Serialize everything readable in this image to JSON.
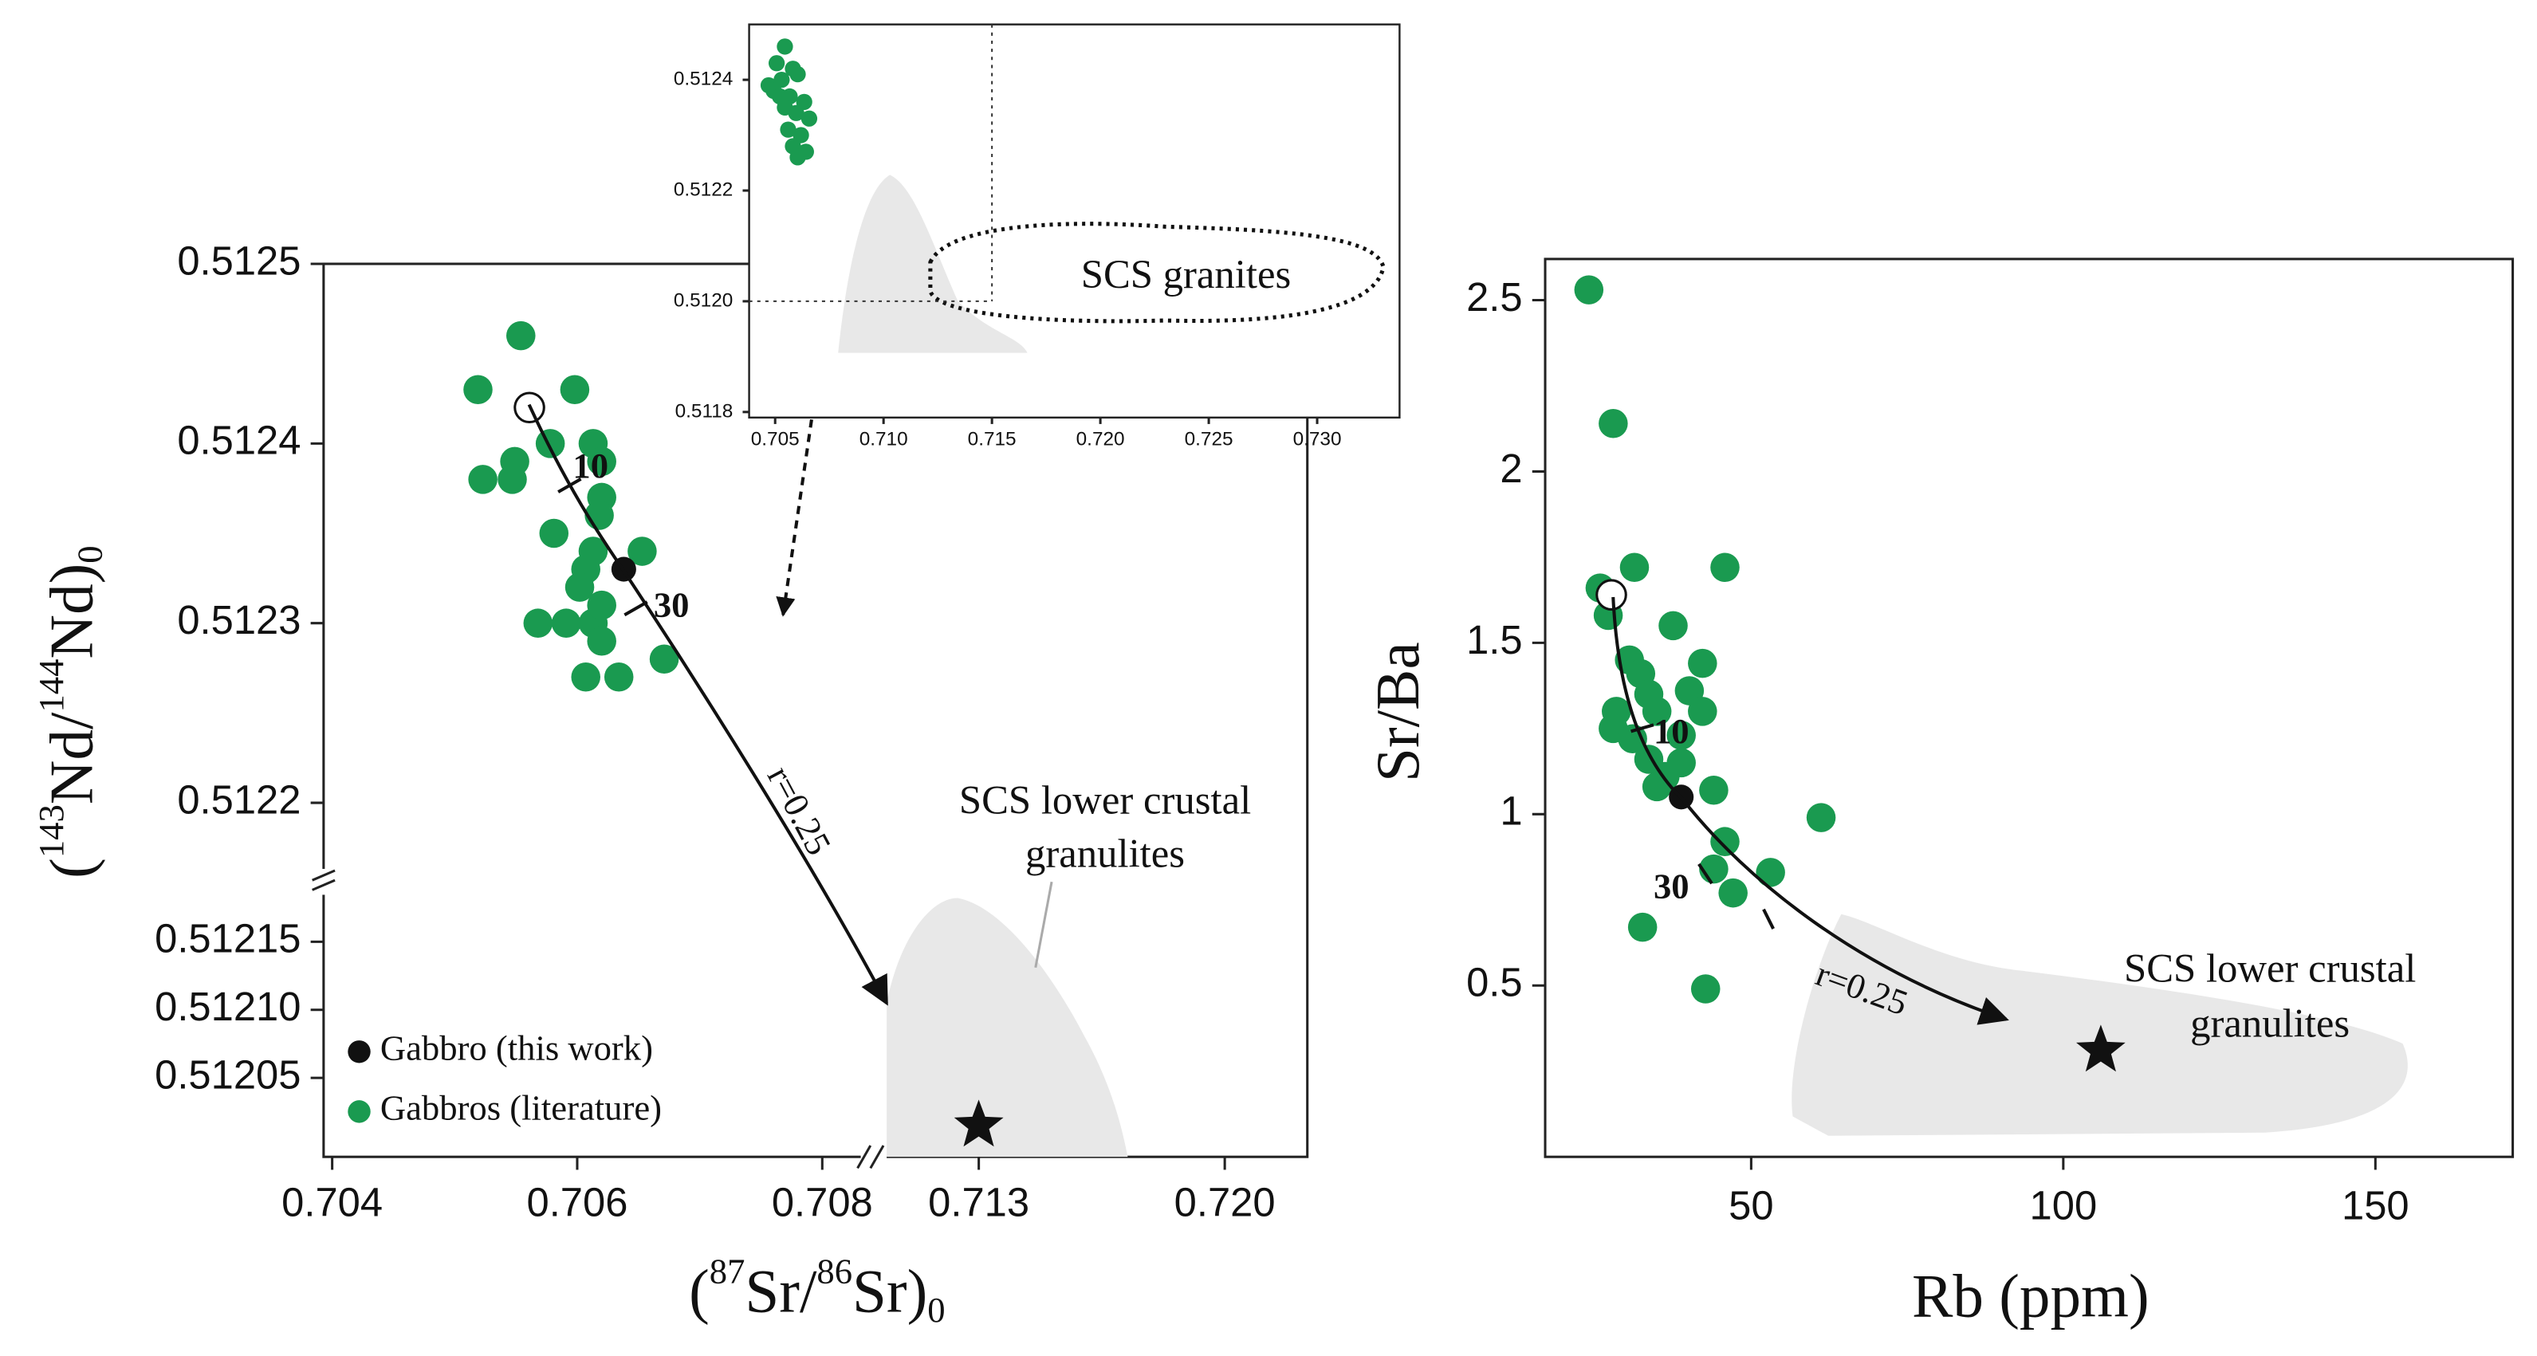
{
  "chart_data": [
    {
      "type": "scatter",
      "xlabel": [
        "(",
        "87",
        "Sr/",
        "86",
        "Sr)",
        "0"
      ],
      "ylabel": [
        "(",
        "143",
        "Nd/",
        "144",
        "Nd)",
        "0"
      ],
      "xlim": [
        [
          0.70393,
          0.70842
        ],
        [
          0.71001,
          0.72235
        ]
      ],
      "xticks": [
        0.704,
        0.706,
        0.708,
        0.713,
        {
          "value": 0.72,
          "label": "0.720"
        }
      ],
      "ylim": [
        [
          0.512156,
          0.5125
        ],
        [
          0.511992,
          0.512194
        ]
      ],
      "yticks": [
        0.5122,
        0.5123,
        0.5124,
        0.5125,
        0.51215,
        {
          "value": 0.5121,
          "label": "0.51210"
        },
        0.51205
      ],
      "series": [
        {
          "name": "Gabbro (this work)",
          "color": "#111111",
          "x": [
            0.70638
          ],
          "values": [
            0.51233
          ]
        },
        {
          "name": "Gabbros (literature)",
          "color": "#1a9a50",
          "x": [
            0.70519,
            0.70554,
            0.70523,
            0.70549,
            0.70547,
            0.70578,
            0.70598,
            0.70613,
            0.7062,
            0.7062,
            0.70618,
            0.70581,
            0.70613,
            0.70607,
            0.70602,
            0.70653,
            0.70568,
            0.70591,
            0.70613,
            0.7062,
            0.70607,
            0.70634,
            0.70671,
            0.7062
          ],
          "values": [
            0.51243,
            0.51246,
            0.51238,
            0.51239,
            0.51238,
            0.5124,
            0.51243,
            0.5124,
            0.51239,
            0.51237,
            0.51236,
            0.51235,
            0.51234,
            0.51233,
            0.51232,
            0.51234,
            0.5123,
            0.5123,
            0.5123,
            0.51229,
            0.51227,
            0.51227,
            0.51228,
            0.51231
          ]
        }
      ],
      "start_point": {
        "x": 0.70561,
        "y": 0.51242
      },
      "star": {
        "x": 0.713,
        "y": 0.512015
      },
      "legend": "lower left",
      "annotations": [
        "10",
        "30",
        "r=0.25",
        "SCS lower crustal",
        "granulites"
      ]
    },
    {
      "type": "scatter",
      "xlim": [
        0.7038,
        0.7338
      ],
      "xticks": [
        0.705,
        {
          "value": 0.71,
          "label": "0.710"
        },
        0.715,
        {
          "value": 0.72,
          "label": "0.720"
        },
        0.725,
        {
          "value": 0.73,
          "label": "0.730"
        }
      ],
      "ylim": [
        0.51179,
        0.5125
      ],
      "yticks": [
        0.5118,
        {
          "value": 0.512,
          "label": "0.5120"
        },
        0.5122,
        0.5124
      ],
      "guides": {
        "x": 0.715,
        "y": 0.512
      },
      "series": [
        {
          "color": "#1a9a50",
          "x": [
            0.70545,
            0.70507,
            0.70582,
            0.7047,
            0.7053,
            0.70604,
            0.70493,
            0.70567,
            0.70634,
            0.70545,
            0.70597,
            0.70657,
            0.7056,
            0.70619,
            0.70582,
            0.70642,
            0.70604,
            0.70522
          ],
          "values": [
            0.51246,
            0.51243,
            0.51242,
            0.51239,
            0.5124,
            0.51241,
            0.51238,
            0.51237,
            0.51236,
            0.51235,
            0.51234,
            0.51233,
            0.51231,
            0.5123,
            0.51228,
            0.51227,
            0.51226,
            0.51237
          ]
        }
      ],
      "annotations": [
        "SCS granites"
      ]
    },
    {
      "type": "scatter",
      "xlabel": "Rb (ppm)",
      "ylabel": "Sr/Ba",
      "xlim": [
        17,
        172
      ],
      "xticks": [
        50,
        100,
        150
      ],
      "ylim": [
        0,
        2.62
      ],
      "yticks": [
        0.5,
        1,
        1.5,
        2,
        2.5
      ],
      "series": [
        {
          "color": "#1a9a50",
          "x": [
            24.0,
            27.9,
            25.8,
            31.3,
            45.8,
            27.1,
            37.5,
            30.5,
            32.3,
            33.6,
            42.2,
            40.1,
            28.4,
            34.9,
            42.2,
            27.9,
            31.0,
            38.8,
            33.6,
            38.8,
            36.2,
            34.9,
            44.0,
            45.8,
            61.2,
            44.0,
            53.1,
            47.1,
            32.6,
            42.7
          ],
          "values": [
            2.53,
            2.14,
            1.66,
            1.72,
            1.72,
            1.58,
            1.55,
            1.45,
            1.41,
            1.35,
            1.44,
            1.36,
            1.3,
            1.3,
            1.3,
            1.25,
            1.22,
            1.23,
            1.16,
            1.15,
            1.11,
            1.08,
            1.07,
            0.92,
            0.99,
            0.84,
            0.83,
            0.77,
            0.67,
            0.49
          ]
        },
        {
          "color": "#111111",
          "x": [
            38.8
          ],
          "values": [
            1.05
          ]
        }
      ],
      "start_point": {
        "x": 27.6,
        "y": 1.64
      },
      "star": {
        "x": 106.0,
        "y": 0.31
      },
      "annotations": [
        "10",
        "30",
        "r=0.25",
        "SCS lower crustal",
        "granulites"
      ]
    }
  ]
}
